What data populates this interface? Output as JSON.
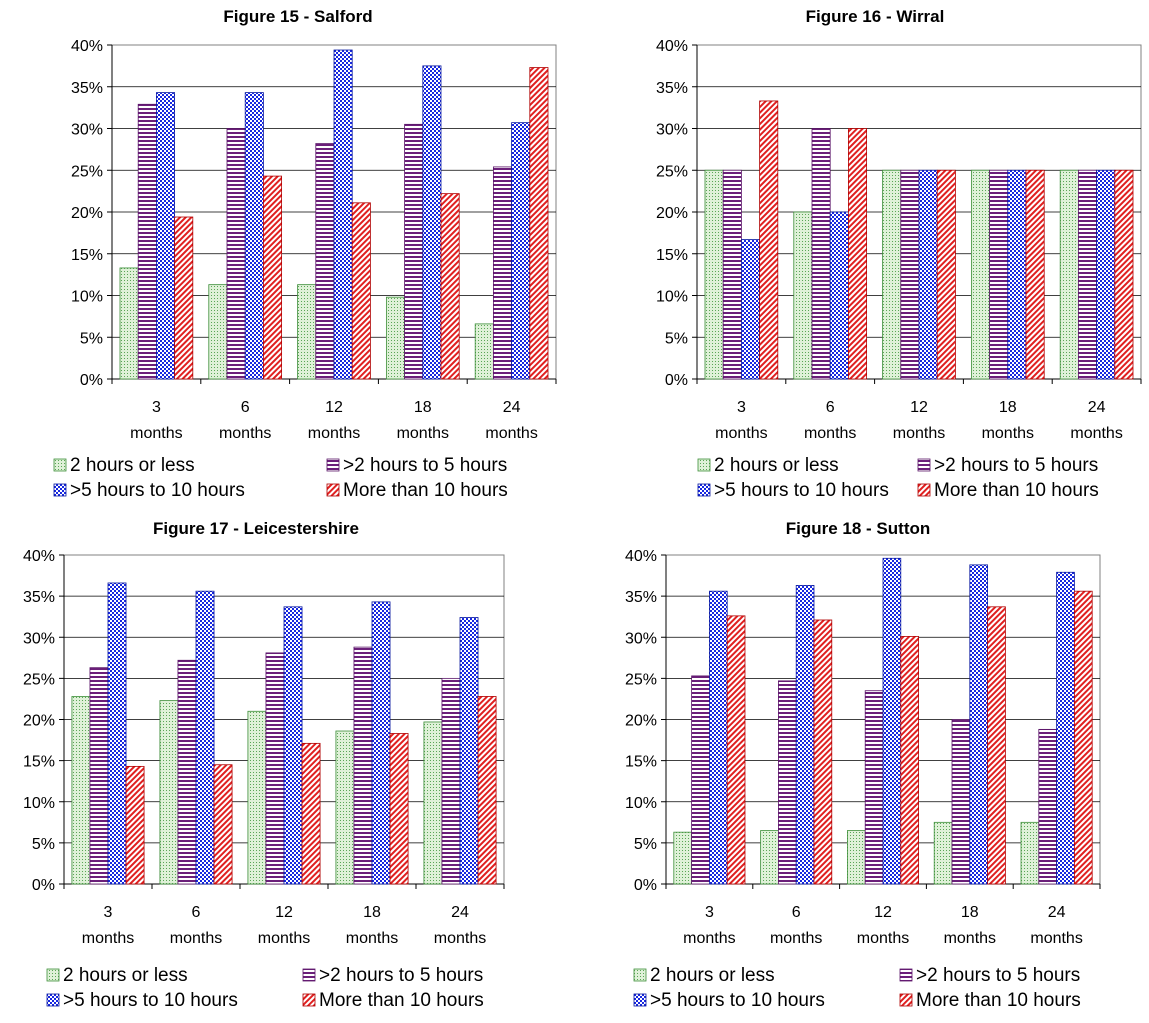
{
  "chart_data": [
    {
      "type": "bar",
      "title": "Figure 15 - Salford",
      "categories": [
        "3 months",
        "6 months",
        "12 months",
        "18 months",
        "24 months"
      ],
      "category_lines": [
        [
          "3",
          "months"
        ],
        [
          "6",
          "months"
        ],
        [
          "12",
          "months"
        ],
        [
          "18",
          "months"
        ],
        [
          "24",
          "months"
        ]
      ],
      "ylim": [
        0,
        40
      ],
      "yticks": [
        0,
        5,
        10,
        15,
        20,
        25,
        30,
        35,
        40
      ],
      "ytick_labels": [
        "0%",
        "5%",
        "10%",
        "15%",
        "20%",
        "25%",
        "30%",
        "35%",
        "40%"
      ],
      "y_unit": "%",
      "xlabel": "",
      "ylabel": "",
      "grid": true,
      "legend_position": "bottom",
      "series": [
        {
          "name": "2 hours or less",
          "values": [
            13.3,
            11.3,
            11.3,
            9.8,
            6.6
          ]
        },
        {
          "name": ">2 hours to 5 hours",
          "values": [
            32.9,
            30.0,
            28.2,
            30.5,
            25.4
          ]
        },
        {
          "name": ">5 hours to 10 hours",
          "values": [
            34.3,
            34.3,
            39.4,
            37.5,
            30.7
          ]
        },
        {
          "name": "More than 10 hours",
          "values": [
            19.4,
            24.3,
            21.1,
            22.2,
            37.3
          ]
        }
      ]
    },
    {
      "type": "bar",
      "title": "Figure 16 - Wirral",
      "categories": [
        "3 months",
        "6 months",
        "12 months",
        "18 months",
        "24 months"
      ],
      "category_lines": [
        [
          "3",
          "months"
        ],
        [
          "6",
          "months"
        ],
        [
          "12",
          "months"
        ],
        [
          "18",
          "months"
        ],
        [
          "24",
          "months"
        ]
      ],
      "ylim": [
        0,
        40
      ],
      "yticks": [
        0,
        5,
        10,
        15,
        20,
        25,
        30,
        35,
        40
      ],
      "ytick_labels": [
        "0%",
        "5%",
        "10%",
        "15%",
        "20%",
        "25%",
        "30%",
        "35%",
        "40%"
      ],
      "y_unit": "%",
      "xlabel": "",
      "ylabel": "",
      "grid": true,
      "legend_position": "bottom",
      "series": [
        {
          "name": "2 hours or less",
          "values": [
            25.0,
            20.0,
            25.0,
            25.0,
            25.0
          ]
        },
        {
          "name": ">2 hours to 5 hours",
          "values": [
            25.0,
            30.0,
            25.0,
            25.0,
            25.0
          ]
        },
        {
          "name": ">5 hours to 10 hours",
          "values": [
            16.7,
            20.0,
            25.0,
            25.0,
            25.0
          ]
        },
        {
          "name": "More than 10 hours",
          "values": [
            33.3,
            30.0,
            25.0,
            25.0,
            25.0
          ]
        }
      ]
    },
    {
      "type": "bar",
      "title": "Figure 17 - Leicestershire",
      "categories": [
        "3 months",
        "6 months",
        "12 months",
        "18 months",
        "24 months"
      ],
      "category_lines": [
        [
          "3",
          "months"
        ],
        [
          "6",
          "months"
        ],
        [
          "12",
          "months"
        ],
        [
          "18",
          "months"
        ],
        [
          "24",
          "months"
        ]
      ],
      "ylim": [
        0,
        40
      ],
      "yticks": [
        0,
        5,
        10,
        15,
        20,
        25,
        30,
        35,
        40
      ],
      "ytick_labels": [
        "0%",
        "5%",
        "10%",
        "15%",
        "20%",
        "25%",
        "30%",
        "35%",
        "40%"
      ],
      "y_unit": "%",
      "xlabel": "",
      "ylabel": "",
      "grid": true,
      "legend_position": "bottom",
      "series": [
        {
          "name": "2 hours or less",
          "values": [
            22.8,
            22.3,
            21.0,
            18.6,
            19.7
          ]
        },
        {
          "name": ">2 hours to 5 hours",
          "values": [
            26.3,
            27.2,
            28.1,
            28.8,
            25.0
          ]
        },
        {
          "name": ">5 hours to 10 hours",
          "values": [
            36.6,
            35.6,
            33.7,
            34.3,
            32.4
          ]
        },
        {
          "name": "More than 10 hours",
          "values": [
            14.3,
            14.5,
            17.1,
            18.3,
            22.8
          ]
        }
      ]
    },
    {
      "type": "bar",
      "title": "Figure 18 - Sutton",
      "categories": [
        "3 months",
        "6 months",
        "12 months",
        "18 months",
        "24 months"
      ],
      "category_lines": [
        [
          "3",
          "months"
        ],
        [
          "6",
          "months"
        ],
        [
          "12",
          "months"
        ],
        [
          "18",
          "months"
        ],
        [
          "24",
          "months"
        ]
      ],
      "ylim": [
        0,
        40
      ],
      "yticks": [
        0,
        5,
        10,
        15,
        20,
        25,
        30,
        35,
        40
      ],
      "ytick_labels": [
        "0%",
        "5%",
        "10%",
        "15%",
        "20%",
        "25%",
        "30%",
        "35%",
        "40%"
      ],
      "y_unit": "%",
      "xlabel": "",
      "ylabel": "",
      "grid": true,
      "legend_position": "bottom",
      "series": [
        {
          "name": "2 hours or less",
          "values": [
            6.3,
            6.5,
            6.5,
            7.5,
            7.5
          ]
        },
        {
          "name": ">2 hours to 5 hours",
          "values": [
            25.3,
            24.7,
            23.5,
            20.0,
            18.8
          ]
        },
        {
          "name": ">5 hours to 10 hours",
          "values": [
            35.6,
            36.3,
            39.6,
            38.8,
            37.9
          ]
        },
        {
          "name": "More than 10 hours",
          "values": [
            32.6,
            32.1,
            30.1,
            33.7,
            35.6
          ]
        }
      ]
    }
  ],
  "series_style": [
    {
      "pattern": "dots",
      "fill": "#dff1d8",
      "stroke": "#3e8f3a",
      "ink": "#5aa556"
    },
    {
      "pattern": "hstripes",
      "fill": "#ffffff",
      "stroke": "#5a1468",
      "ink": "#6b1f7a"
    },
    {
      "pattern": "checker",
      "fill": "#ffffff",
      "stroke": "#0a1aa0",
      "ink": "#1828e0"
    },
    {
      "pattern": "diagonal",
      "fill": "#ffffff",
      "stroke": "#b00000",
      "ink": "#e02020"
    }
  ]
}
